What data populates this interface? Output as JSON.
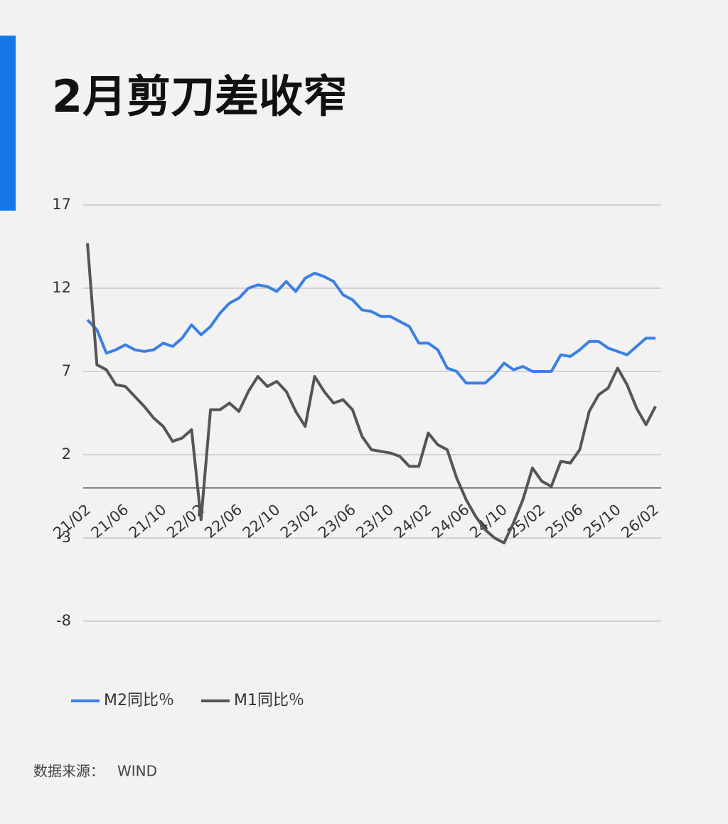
{
  "chart_data": {
    "type": "line",
    "title": "2月剪刀差收窄",
    "categories": [
      "21/02",
      null,
      null,
      null,
      "21/06",
      null,
      null,
      null,
      "21/10",
      null,
      null,
      null,
      "22/02",
      null,
      null,
      null,
      "22/06",
      null,
      null,
      null,
      "22/10",
      null,
      null,
      null,
      "23/02",
      null,
      null,
      null,
      "23/06",
      null,
      null,
      null,
      "23/10",
      null,
      null,
      null,
      "24/02",
      null,
      null,
      null,
      "24/06",
      null,
      null,
      null,
      "24/10",
      null,
      null,
      null,
      "25/02",
      null,
      null,
      null,
      "25/06",
      null,
      null,
      null,
      "25/10",
      null,
      null,
      null,
      "26/02"
    ],
    "series": [
      {
        "name": "M2同比％",
        "color": "#3b7fe6",
        "values": [
          10.1,
          9.5,
          8.1,
          8.3,
          8.6,
          8.3,
          8.2,
          8.3,
          8.7,
          8.5,
          9.0,
          9.8,
          9.2,
          9.7,
          10.5,
          11.1,
          11.4,
          12.0,
          12.2,
          12.1,
          11.8,
          12.4,
          11.8,
          12.6,
          12.9,
          12.7,
          12.4,
          11.6,
          11.3,
          10.7,
          10.6,
          10.3,
          10.3,
          10.0,
          9.7,
          8.7,
          8.7,
          8.3,
          7.2,
          7.0,
          6.3,
          6.3,
          6.3,
          6.8,
          7.5,
          7.1,
          7.3,
          7.0,
          7.0,
          7.0,
          8.0,
          7.9,
          8.3,
          8.8,
          8.8,
          8.4,
          8.2,
          8.0,
          8.5,
          9.0,
          9.0
        ]
      },
      {
        "name": "M1同比％",
        "color": "#555555",
        "values": [
          14.7,
          7.4,
          7.1,
          6.2,
          6.1,
          5.5,
          4.9,
          4.2,
          3.7,
          2.8,
          3.0,
          3.5,
          -1.9,
          4.7,
          4.7,
          5.1,
          4.6,
          5.8,
          6.7,
          6.1,
          6.4,
          5.8,
          4.6,
          3.7,
          6.7,
          5.8,
          5.1,
          5.3,
          4.7,
          3.1,
          2.3,
          2.2,
          2.1,
          1.9,
          1.3,
          1.3,
          3.3,
          2.6,
          2.3,
          0.6,
          -0.7,
          -1.7,
          -2.5,
          -3.0,
          -3.3,
          -2.1,
          -0.7,
          1.2,
          0.4,
          0.1,
          1.6,
          1.5,
          2.3,
          4.6,
          5.6,
          6.0,
          7.2,
          6.2,
          4.8,
          3.8,
          4.9
        ]
      }
    ],
    "ylim": [
      -8,
      17
    ],
    "yticks": [
      -8,
      -3,
      2,
      7,
      12,
      17
    ],
    "grid": true,
    "legend": "bottom",
    "source_label": "数据来源：",
    "source": "WIND"
  }
}
